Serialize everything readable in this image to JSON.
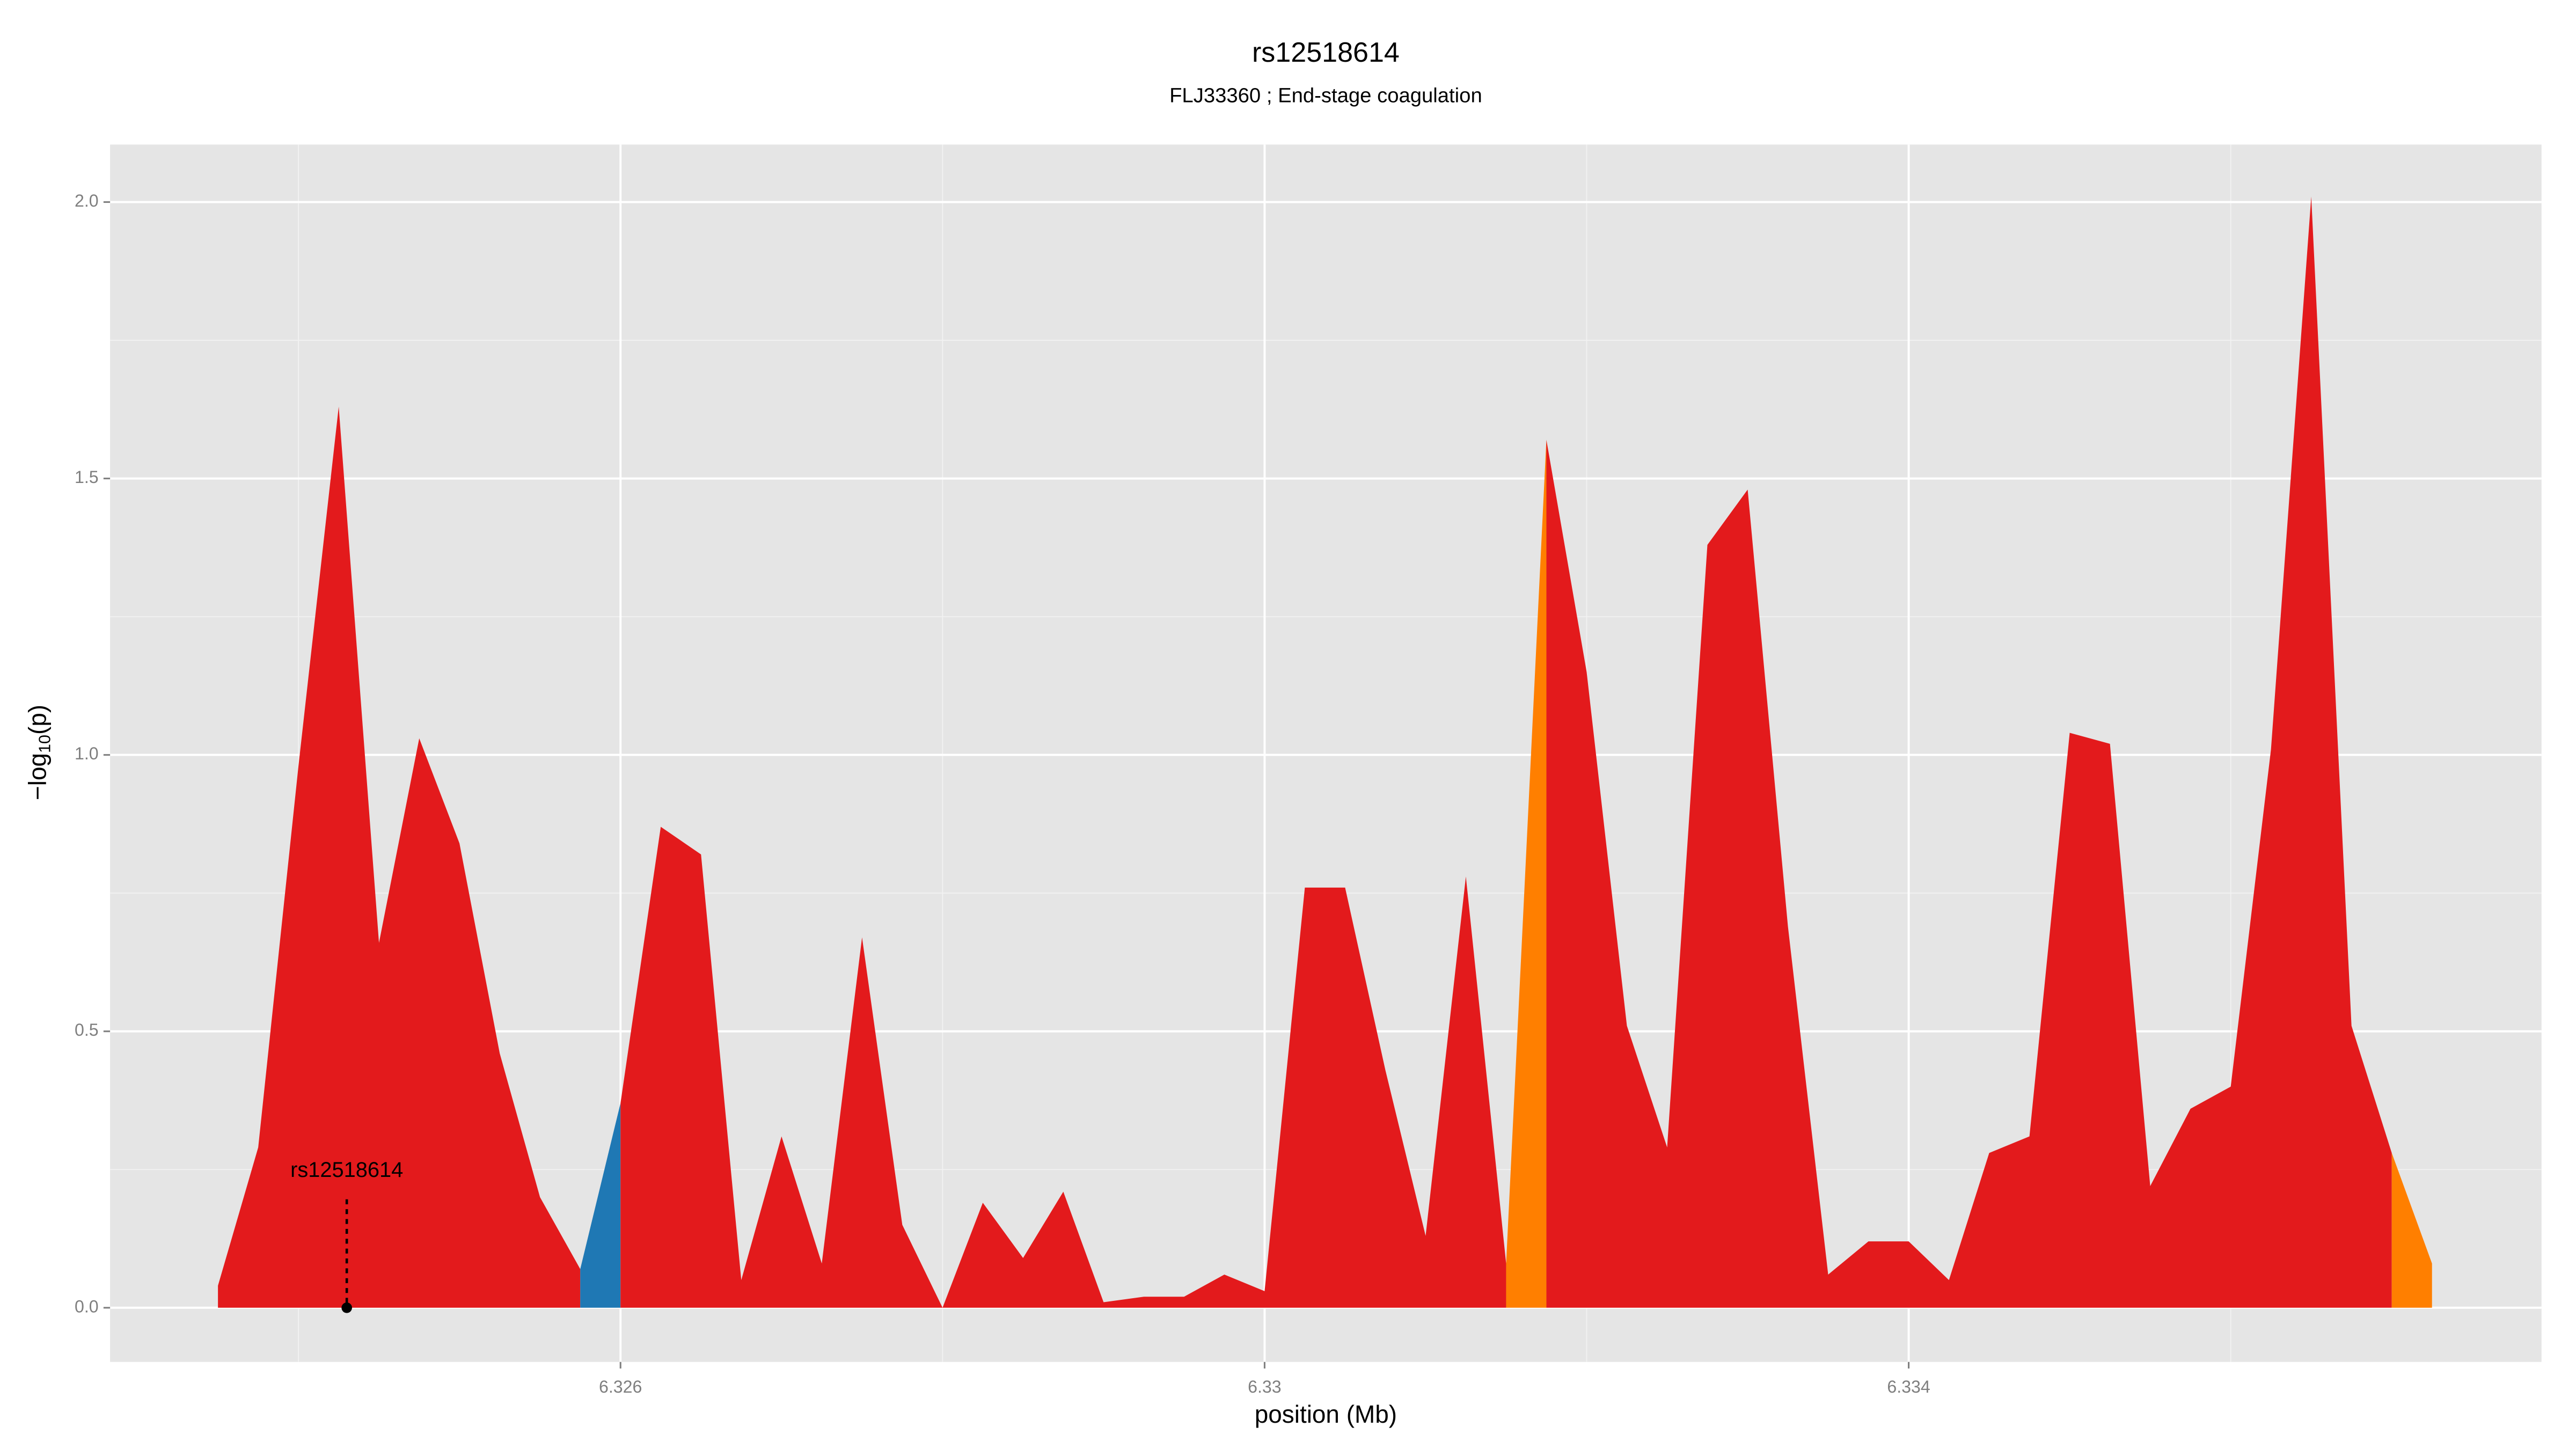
{
  "chart_data": {
    "type": "area",
    "title": "rs12518614",
    "subtitle": "FLJ33360 ; End-stage coagulation",
    "x_label": "position (Mb)",
    "y_label": [
      "−log",
      "10",
      "(p)"
    ],
    "x": [
      6.3235,
      6.32375,
      6.324,
      6.32425,
      6.3245,
      6.32475,
      6.325,
      6.32525,
      6.3255,
      6.32575,
      6.326,
      6.32625,
      6.3265,
      6.32675,
      6.327,
      6.32725,
      6.3275,
      6.32775,
      6.328,
      6.32825,
      6.3285,
      6.32875,
      6.329,
      6.32925,
      6.3295,
      6.32975,
      6.33,
      6.33025,
      6.3305,
      6.33075,
      6.331,
      6.33125,
      6.3315,
      6.33175,
      6.332,
      6.33225,
      6.3325,
      6.33275,
      6.333,
      6.33325,
      6.3335,
      6.33375,
      6.334,
      6.33425,
      6.3345,
      6.33475,
      6.335,
      6.33525,
      6.3355,
      6.33575,
      6.336,
      6.33625,
      6.3365,
      6.33675,
      6.337,
      6.33725
    ],
    "values": [
      0.04,
      0.29,
      0.98,
      1.63,
      0.66,
      1.03,
      0.84,
      0.46,
      0.2,
      0.07,
      0.37,
      0.87,
      0.82,
      0.05,
      0.31,
      0.08,
      0.67,
      0.15,
      0.0,
      0.19,
      0.09,
      0.21,
      0.01,
      0.02,
      0.02,
      0.06,
      0.03,
      0.76,
      0.76,
      0.43,
      0.13,
      0.78,
      0.08,
      1.57,
      1.15,
      0.51,
      0.29,
      1.38,
      1.48,
      0.69,
      0.06,
      0.12,
      0.12,
      0.05,
      0.28,
      0.31,
      1.04,
      1.02,
      0.22,
      0.36,
      0.4,
      1.01,
      2.01,
      0.51,
      0.28,
      0.08
    ],
    "segment_colors": [
      "#e31a1c",
      "#e31a1c",
      "#e31a1c",
      "#e31a1c",
      "#e31a1c",
      "#e31a1c",
      "#e31a1c",
      "#e31a1c",
      "#e31a1c",
      "#1f78b4",
      "#e31a1c",
      "#e31a1c",
      "#e31a1c",
      "#e31a1c",
      "#e31a1c",
      "#e31a1c",
      "#e31a1c",
      "#e31a1c",
      "#e31a1c",
      "#e31a1c",
      "#e31a1c",
      "#e31a1c",
      "#e31a1c",
      "#e31a1c",
      "#e31a1c",
      "#e31a1c",
      "#e31a1c",
      "#e31a1c",
      "#e31a1c",
      "#e31a1c",
      "#e31a1c",
      "#e31a1c",
      "#ff7f00",
      "#e31a1c",
      "#e31a1c",
      "#e31a1c",
      "#e31a1c",
      "#e31a1c",
      "#e31a1c",
      "#e31a1c",
      "#e31a1c",
      "#e31a1c",
      "#e31a1c",
      "#e31a1c",
      "#e31a1c",
      "#e31a1c",
      "#e31a1c",
      "#e31a1c",
      "#e31a1c",
      "#e31a1c",
      "#e31a1c",
      "#e31a1c",
      "#e31a1c",
      "#e31a1c",
      "#ff7f00"
    ],
    "annotation": {
      "text": "rs12518614",
      "x": 6.3243,
      "y": 0
    },
    "xlim": [
      6.32283,
      6.33793
    ],
    "ylim": [
      -0.098,
      2.104
    ],
    "xticks": [
      6.326,
      6.33,
      6.334
    ],
    "x_minor_ticks": [
      6.324,
      6.328,
      6.332,
      6.336
    ],
    "yticks": [
      {
        "value": 0,
        "label": "0.0"
      },
      {
        "value": 0.5,
        "label": "0.5"
      },
      {
        "value": 1,
        "label": "1.0"
      },
      {
        "value": 1.5,
        "label": "1.5"
      },
      {
        "value": 2,
        "label": "2.0"
      }
    ],
    "y_minor_ticks": [
      0.25,
      0.75,
      1.25,
      1.75
    ],
    "grid": true
  }
}
